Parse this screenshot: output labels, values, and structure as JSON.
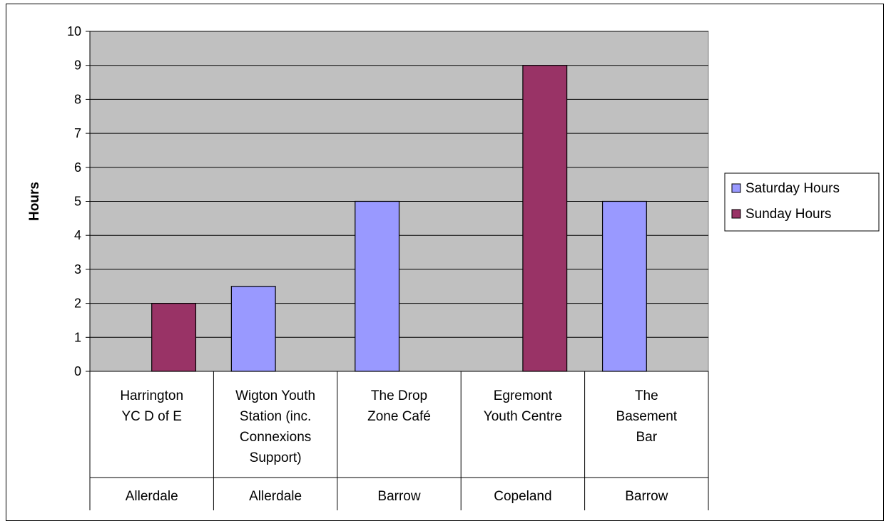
{
  "chart_data": {
    "type": "bar",
    "ylabel": "Hours",
    "ylim": [
      0,
      10
    ],
    "yticks": [
      0,
      1,
      2,
      3,
      4,
      5,
      6,
      7,
      8,
      9,
      10
    ],
    "grid": true,
    "legend_position": "right",
    "categories": [
      {
        "name": [
          "Harrington",
          "YC D of E"
        ],
        "group": "Allerdale"
      },
      {
        "name": [
          "Wigton Youth",
          "Station (inc.",
          "Connexions",
          "Support)"
        ],
        "group": "Allerdale"
      },
      {
        "name": [
          "The Drop",
          "Zone Café"
        ],
        "group": "Barrow"
      },
      {
        "name": [
          "Egremont",
          "Youth Centre"
        ],
        "group": "Copeland"
      },
      {
        "name": [
          "The",
          "Basement",
          "Bar"
        ],
        "group": "Barrow"
      }
    ],
    "series": [
      {
        "name": "Saturday Hours",
        "color": "#9999ff",
        "values": [
          null,
          2.5,
          5,
          null,
          5
        ]
      },
      {
        "name": "Sunday Hours",
        "color": "#993366",
        "values": [
          2,
          null,
          null,
          9,
          null
        ]
      }
    ],
    "plot_background": "#c0c0c0"
  }
}
